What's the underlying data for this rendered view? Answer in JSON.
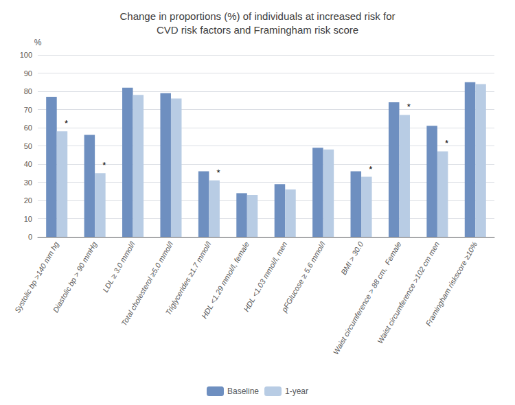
{
  "chart_data": {
    "type": "bar",
    "title": "Change in proportions (%) of individuals at increased risk for\nCVD risk factors and Framingham risk score",
    "y_label": "%",
    "categories": [
      "Systolic bp >140 mm hg",
      "Diastolic bp > 90 mmHg",
      "LDL ≥ 3.0 mmol/l",
      "Total cholesterol ≥5.0 mmol/l",
      "Triglycerides ≥1.7 mmol/l",
      "HDL <1.29 mmol/l, female",
      "HDL <1.03 mmol/l, men",
      "pFGlucose ≥ 5.6 mmol/l",
      "BMI > 30.0",
      "Waist circumference > 88 cm,  Female",
      "Waist circumference >102 cm men",
      "Framingham riskscore ≥10%"
    ],
    "series": [
      {
        "name": "Baseline",
        "color": "#6E8FC0",
        "values": [
          77,
          56,
          82,
          79,
          36,
          24,
          29,
          49,
          36,
          74,
          61,
          85
        ]
      },
      {
        "name": "1-year",
        "color": "#B8CCE4",
        "values": [
          58,
          35,
          78,
          76,
          31,
          23,
          26,
          48,
          33,
          67,
          47,
          84
        ]
      }
    ],
    "annotations": [
      {
        "text": "*",
        "category": "Systolic bp >140 mm hg",
        "series": "1-year"
      },
      {
        "text": "*",
        "category": "Diastolic bp > 90 mmHg",
        "series": "1-year"
      },
      {
        "text": "*",
        "category": "Triglycerides ≥1.7 mmol/l",
        "series": "1-year"
      },
      {
        "text": "*",
        "category": "BMI > 30.0",
        "series": "1-year"
      },
      {
        "text": "*",
        "category": "Waist circumference > 88 cm,  Female",
        "series": "1-year"
      },
      {
        "text": "*",
        "category": "Waist circumference >102 cm men",
        "series": "1-year"
      }
    ],
    "ylim": [
      0,
      100
    ],
    "yticks": [
      0,
      10,
      20,
      30,
      40,
      50,
      60,
      70,
      80,
      90,
      100
    ],
    "grid": true,
    "legend": "bottom"
  }
}
